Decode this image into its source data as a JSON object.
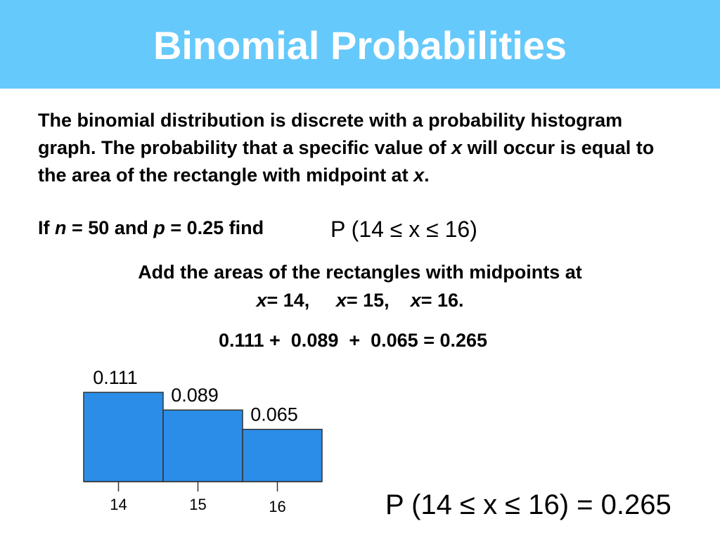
{
  "slide": {
    "title": "Binomial Probabilities",
    "intro_part1": "The binomial distribution is discrete with a probability histogram graph. The probability that a specific value of ",
    "intro_var1": "x",
    "intro_part2": " will occur is equal to the area of the rectangle with midpoint at ",
    "intro_var2": "x",
    "intro_part3": ".",
    "given_if": "If ",
    "given_n": "n",
    "given_mid": " = 50 and ",
    "given_p": "p",
    "given_end": " = 0.25 find",
    "find_expression": "P (14 ≤ x ≤ 16)",
    "instruction": "Add the areas of the rectangles with midpoints at",
    "midpoints": [
      {
        "var": "x",
        "text": " = 14,"
      },
      {
        "var": "x",
        "text": " = 15,"
      },
      {
        "var": "x",
        "text": " = 16."
      }
    ],
    "sum_equation": "0.111 +  0.089  +  0.065 = 0.265",
    "result_expression": "P (14 ≤ x ≤ 16) = 0.265"
  },
  "chart_data": {
    "type": "bar",
    "categories": [
      "14",
      "15",
      "16"
    ],
    "values": [
      0.111,
      0.089,
      0.065
    ],
    "data_labels": [
      "0.111",
      "0.089",
      "0.065"
    ],
    "title": "",
    "xlabel": "",
    "ylabel": "",
    "ylim": [
      0,
      0.111
    ],
    "grid": false,
    "bar_color": "#2b8de8"
  }
}
